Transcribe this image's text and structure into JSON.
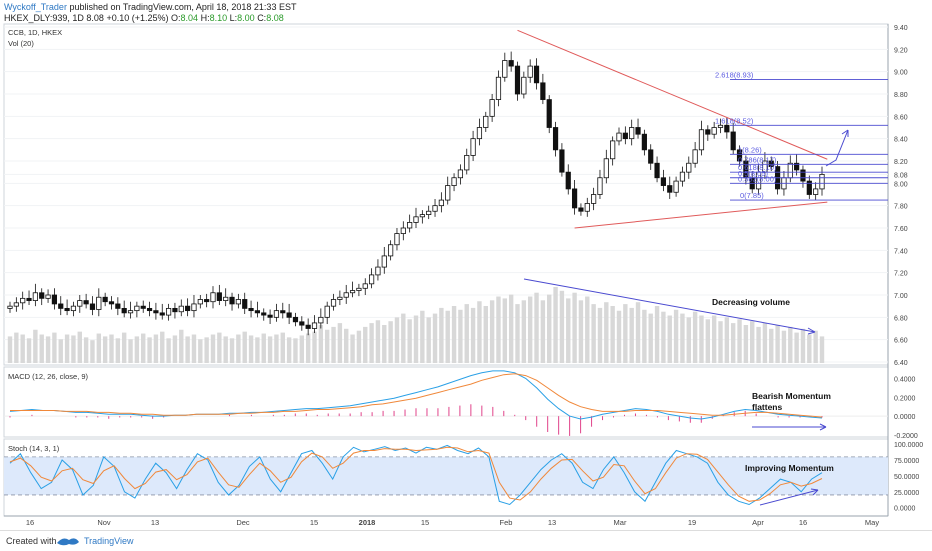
{
  "header": {
    "author": "Wyckoff_Trader",
    "published": "published on TradingView.com, April 18, 2018 21:33 EST",
    "symbol": "HKEX_DLY:939, 1D",
    "last": "8.08",
    "change": "+0.10 (+1.25%)",
    "o_label": "O:",
    "o": "8.04",
    "h_label": "H:",
    "h": "8.10",
    "l_label": "L:",
    "l": "8.00",
    "c_label": "C:",
    "c": "8.08"
  },
  "chart_data": [
    {
      "type": "candlestick",
      "title": "CCB, 1D, HKEX",
      "subtitle": "Vol (20)",
      "ylim": [
        6.4,
        9.4
      ],
      "y_ticks": [
        "9.40",
        "9.20",
        "9.00",
        "8.80",
        "8.60",
        "8.40",
        "8.20",
        "8.08",
        "8.00",
        "7.80",
        "7.60",
        "7.40",
        "7.20",
        "7.00",
        "6.80",
        "6.60",
        "6.40"
      ],
      "close_series": [
        6.9,
        6.93,
        6.97,
        6.95,
        7.02,
        6.97,
        7.0,
        6.92,
        6.88,
        6.86,
        6.9,
        6.95,
        6.92,
        6.87,
        6.98,
        6.94,
        6.92,
        6.88,
        6.84,
        6.86,
        6.9,
        6.88,
        6.86,
        6.84,
        6.82,
        6.88,
        6.85,
        6.9,
        6.86,
        6.92,
        6.96,
        6.94,
        7.02,
        6.95,
        6.98,
        6.92,
        6.96,
        6.88,
        6.86,
        6.84,
        6.82,
        6.8,
        6.86,
        6.84,
        6.8,
        6.76,
        6.73,
        6.7,
        6.75,
        6.8,
        6.9,
        6.96,
        6.98,
        7.02,
        7.04,
        7.06,
        7.1,
        7.18,
        7.25,
        7.35,
        7.45,
        7.55,
        7.6,
        7.65,
        7.7,
        7.72,
        7.75,
        7.8,
        7.85,
        7.98,
        8.05,
        8.12,
        8.25,
        8.4,
        8.5,
        8.6,
        8.75,
        8.95,
        9.1,
        9.05,
        8.8,
        8.95,
        9.05,
        8.9,
        8.75,
        8.5,
        8.3,
        8.1,
        7.95,
        7.78,
        7.75,
        7.82,
        7.9,
        8.05,
        8.22,
        8.38,
        8.45,
        8.4,
        8.5,
        8.44,
        8.3,
        8.18,
        8.05,
        7.98,
        7.92,
        8.02,
        8.1,
        8.18,
        8.3,
        8.48,
        8.44,
        8.5,
        8.52,
        8.46,
        8.3,
        8.2,
        8.05,
        7.95,
        8.1,
        8.2,
        8.15,
        7.95,
        8.05,
        8.18,
        8.12,
        8.02,
        7.9,
        7.95,
        8.08
      ],
      "volume_series": [
        0.28,
        0.32,
        0.3,
        0.26,
        0.35,
        0.3,
        0.28,
        0.32,
        0.25,
        0.3,
        0.29,
        0.33,
        0.27,
        0.24,
        0.31,
        0.28,
        0.3,
        0.26,
        0.32,
        0.25,
        0.28,
        0.31,
        0.27,
        0.3,
        0.33,
        0.26,
        0.29,
        0.35,
        0.28,
        0.3,
        0.25,
        0.27,
        0.3,
        0.32,
        0.28,
        0.26,
        0.3,
        0.33,
        0.29,
        0.27,
        0.31,
        0.28,
        0.3,
        0.32,
        0.27,
        0.26,
        0.29,
        0.31,
        0.33,
        0.4,
        0.35,
        0.38,
        0.42,
        0.36,
        0.3,
        0.34,
        0.38,
        0.42,
        0.45,
        0.4,
        0.44,
        0.48,
        0.52,
        0.46,
        0.5,
        0.55,
        0.48,
        0.52,
        0.58,
        0.55,
        0.6,
        0.56,
        0.62,
        0.58,
        0.65,
        0.6,
        0.66,
        0.7,
        0.68,
        0.72,
        0.62,
        0.66,
        0.7,
        0.74,
        0.66,
        0.72,
        0.8,
        0.76,
        0.68,
        0.74,
        0.66,
        0.7,
        0.62,
        0.58,
        0.64,
        0.6,
        0.55,
        0.62,
        0.58,
        0.64,
        0.56,
        0.52,
        0.6,
        0.54,
        0.5,
        0.56,
        0.52,
        0.48,
        0.54,
        0.5,
        0.46,
        0.5,
        0.44,
        0.48,
        0.42,
        0.46,
        0.4,
        0.44,
        0.38,
        0.42,
        0.36,
        0.4,
        0.34,
        0.38,
        0.32,
        0.36,
        0.3,
        0.34,
        0.28
      ],
      "trendlines": [
        {
          "name": "upper",
          "from": [
            80,
            9.37
          ],
          "to": [
            126,
            8.18
          ]
        },
        {
          "name": "lower",
          "from": [
            89,
            7.6
          ],
          "to": [
            126,
            7.85
          ]
        }
      ],
      "fib_levels": [
        {
          "label": "2.618(8.93)",
          "value": 8.93
        },
        {
          "label": "1.618(8.52)",
          "value": 8.52
        },
        {
          "label": "1(8.26)",
          "value": 8.26
        },
        {
          "label": "0.786(8.17)",
          "value": 8.17
        },
        {
          "label": "0.618(8.10)",
          "value": 8.1
        },
        {
          "label": "0.5(8.05)",
          "value": 8.05
        },
        {
          "label": "0.382(8.00)",
          "value": 8.0
        },
        {
          "label": "0(7.85)",
          "value": 7.85
        }
      ],
      "annotations": [
        "Decreasing volume"
      ]
    },
    {
      "type": "line",
      "title": "MACD (12, 26, close, 9)",
      "ylim": [
        -0.2,
        0.5
      ],
      "y_ticks": [
        "0.4000",
        "0.2000",
        "0.0000",
        "-0.2000"
      ],
      "series": [
        {
          "color": "#2aa0e6",
          "values": [
            0.05,
            0.06,
            0.07,
            0.06,
            0.06,
            0.05,
            0.04,
            0.04,
            0.03,
            0.02,
            0.02,
            0.02,
            0.01,
            0.0,
            0.0,
            0.01,
            0.01,
            0.02,
            0.02,
            0.02,
            0.03,
            0.03,
            0.04,
            0.04,
            0.05,
            0.06,
            0.07,
            0.08,
            0.08,
            0.09,
            0.1,
            0.11,
            0.13,
            0.15,
            0.17,
            0.19,
            0.22,
            0.25,
            0.28,
            0.31,
            0.35,
            0.39,
            0.43,
            0.46,
            0.48,
            0.48,
            0.46,
            0.4,
            0.3,
            0.18,
            0.08,
            0.0,
            -0.03,
            -0.01,
            0.02,
            0.04,
            0.06,
            0.08,
            0.07,
            0.05,
            0.02,
            0.0,
            -0.02,
            -0.03,
            -0.01,
            0.02,
            0.05,
            0.07,
            0.06,
            0.04,
            0.02,
            0.01,
            0.0,
            -0.01,
            -0.02
          ]
        },
        {
          "color": "#f0883a",
          "values": [
            0.06,
            0.06,
            0.06,
            0.06,
            0.06,
            0.05,
            0.05,
            0.05,
            0.04,
            0.04,
            0.03,
            0.03,
            0.02,
            0.02,
            0.01,
            0.01,
            0.01,
            0.02,
            0.02,
            0.02,
            0.02,
            0.03,
            0.03,
            0.04,
            0.04,
            0.05,
            0.05,
            0.06,
            0.07,
            0.07,
            0.08,
            0.09,
            0.1,
            0.12,
            0.13,
            0.15,
            0.17,
            0.19,
            0.22,
            0.25,
            0.28,
            0.31,
            0.34,
            0.38,
            0.41,
            0.44,
            0.45,
            0.43,
            0.38,
            0.3,
            0.22,
            0.15,
            0.1,
            0.07,
            0.05,
            0.05,
            0.05,
            0.06,
            0.06,
            0.06,
            0.05,
            0.04,
            0.03,
            0.02,
            0.01,
            0.01,
            0.02,
            0.03,
            0.04,
            0.04,
            0.03,
            0.02,
            0.01,
            0.0,
            -0.01
          ]
        }
      ],
      "annotations": [
        "Bearish Momentum",
        "flattens"
      ]
    },
    {
      "type": "line",
      "title": "Stoch (14, 3, 1)",
      "ylim": [
        -10,
        105
      ],
      "y_ticks": [
        "100.0000",
        "75.0000",
        "50.0000",
        "25.0000",
        "0.0000"
      ],
      "band": [
        20,
        80
      ],
      "series": [
        {
          "color": "#2aa0e6",
          "values": [
            70,
            85,
            55,
            30,
            40,
            75,
            60,
            20,
            35,
            80,
            65,
            25,
            15,
            45,
            70,
            55,
            30,
            60,
            85,
            75,
            40,
            20,
            35,
            65,
            80,
            45,
            25,
            55,
            85,
            90,
            70,
            45,
            80,
            95,
            88,
            92,
            96,
            90,
            94,
            86,
            95,
            92,
            98,
            90,
            85,
            94,
            80,
            10,
            5,
            20,
            40,
            60,
            75,
            85,
            70,
            40,
            30,
            60,
            80,
            55,
            25,
            10,
            40,
            70,
            90,
            85,
            80,
            70,
            40,
            20,
            10,
            5,
            15,
            30,
            45,
            40,
            25,
            45,
            55
          ]
        },
        {
          "color": "#f0883a",
          "values": [
            72,
            78,
            66,
            48,
            42,
            58,
            62,
            44,
            38,
            58,
            66,
            46,
            30,
            38,
            56,
            60,
            44,
            52,
            72,
            78,
            56,
            36,
            32,
            52,
            70,
            58,
            40,
            48,
            72,
            86,
            80,
            62,
            70,
            86,
            90,
            90,
            93,
            92,
            92,
            90,
            91,
            92,
            95,
            94,
            88,
            90,
            86,
            40,
            15,
            12,
            25,
            45,
            62,
            75,
            76,
            58,
            42,
            48,
            68,
            66,
            42,
            22,
            30,
            55,
            78,
            85,
            84,
            76,
            56,
            36,
            18,
            10,
            12,
            22,
            36,
            40,
            34,
            38,
            46
          ]
        }
      ],
      "annotations": [
        "Improving Momentum"
      ]
    }
  ],
  "x_axis": {
    "labels": [
      "16",
      "Nov",
      "13",
      "Dec",
      "15",
      "2018",
      "15",
      "Feb",
      "13",
      "Mar",
      "19",
      "Apr",
      "16",
      "May"
    ]
  },
  "footer": {
    "created": "Created with",
    "brand": "TradingView"
  }
}
